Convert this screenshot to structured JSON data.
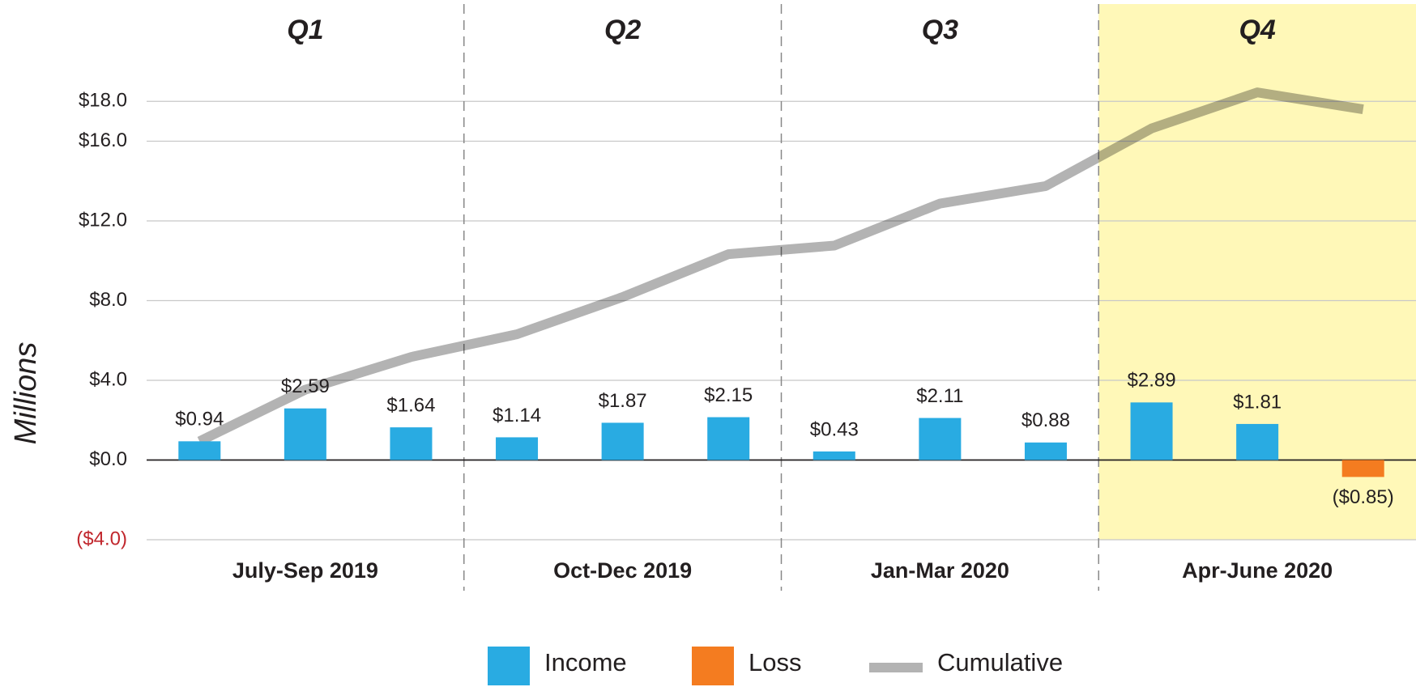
{
  "chart_data": {
    "type": "bar",
    "y_label": "Millions",
    "categories": [
      null,
      null,
      null,
      null,
      null,
      null,
      null,
      null,
      null,
      null,
      null,
      null
    ],
    "quarters": [
      {
        "name": "Q1",
        "label": "July-Sep 2019"
      },
      {
        "name": "Q2",
        "label": "Oct-Dec 2019"
      },
      {
        "name": "Q3",
        "label": "Jan-Mar 2020"
      },
      {
        "name": "Q4",
        "label": "Apr-June 2020"
      }
    ],
    "highlight_quarter": 3,
    "highlight_color": "#fff8b8",
    "series": [
      {
        "name": "Income",
        "type": "bar",
        "color": "#29abe2",
        "values": [
          0.94,
          2.59,
          1.64,
          1.14,
          1.87,
          2.15,
          0.43,
          2.11,
          0.88,
          2.89,
          1.81,
          null
        ],
        "value_labels": [
          "$0.94",
          "$2.59",
          "$1.64",
          "$1.14",
          "$1.87",
          "$2.15",
          "$0.43",
          "$2.11",
          "$0.88",
          "$2.89",
          "$1.81",
          null
        ]
      },
      {
        "name": "Loss",
        "type": "bar",
        "color": "#f47c20",
        "values": [
          null,
          null,
          null,
          null,
          null,
          null,
          null,
          null,
          null,
          null,
          null,
          -0.85
        ],
        "value_labels": [
          null,
          null,
          null,
          null,
          null,
          null,
          null,
          null,
          null,
          null,
          null,
          "($0.85)"
        ]
      },
      {
        "name": "Cumulative",
        "type": "line",
        "color": "#b3b3b3",
        "values": [
          0.94,
          3.53,
          5.17,
          6.31,
          8.18,
          10.33,
          10.76,
          12.87,
          13.75,
          16.64,
          18.45,
          17.6
        ]
      }
    ],
    "ylim": [
      -4,
      20
    ],
    "yticks": [
      {
        "value": -4,
        "label": "($4.0)"
      },
      {
        "value": 0,
        "label": "$0.0"
      },
      {
        "value": 4,
        "label": "$4.0"
      },
      {
        "value": 8,
        "label": "$8.0"
      },
      {
        "value": 12,
        "label": "$12.0"
      },
      {
        "value": 16,
        "label": "$16.0"
      },
      {
        "value": 18,
        "label": "$18.0"
      }
    ],
    "negative_tick_color": "#c1272d",
    "grid": true
  }
}
